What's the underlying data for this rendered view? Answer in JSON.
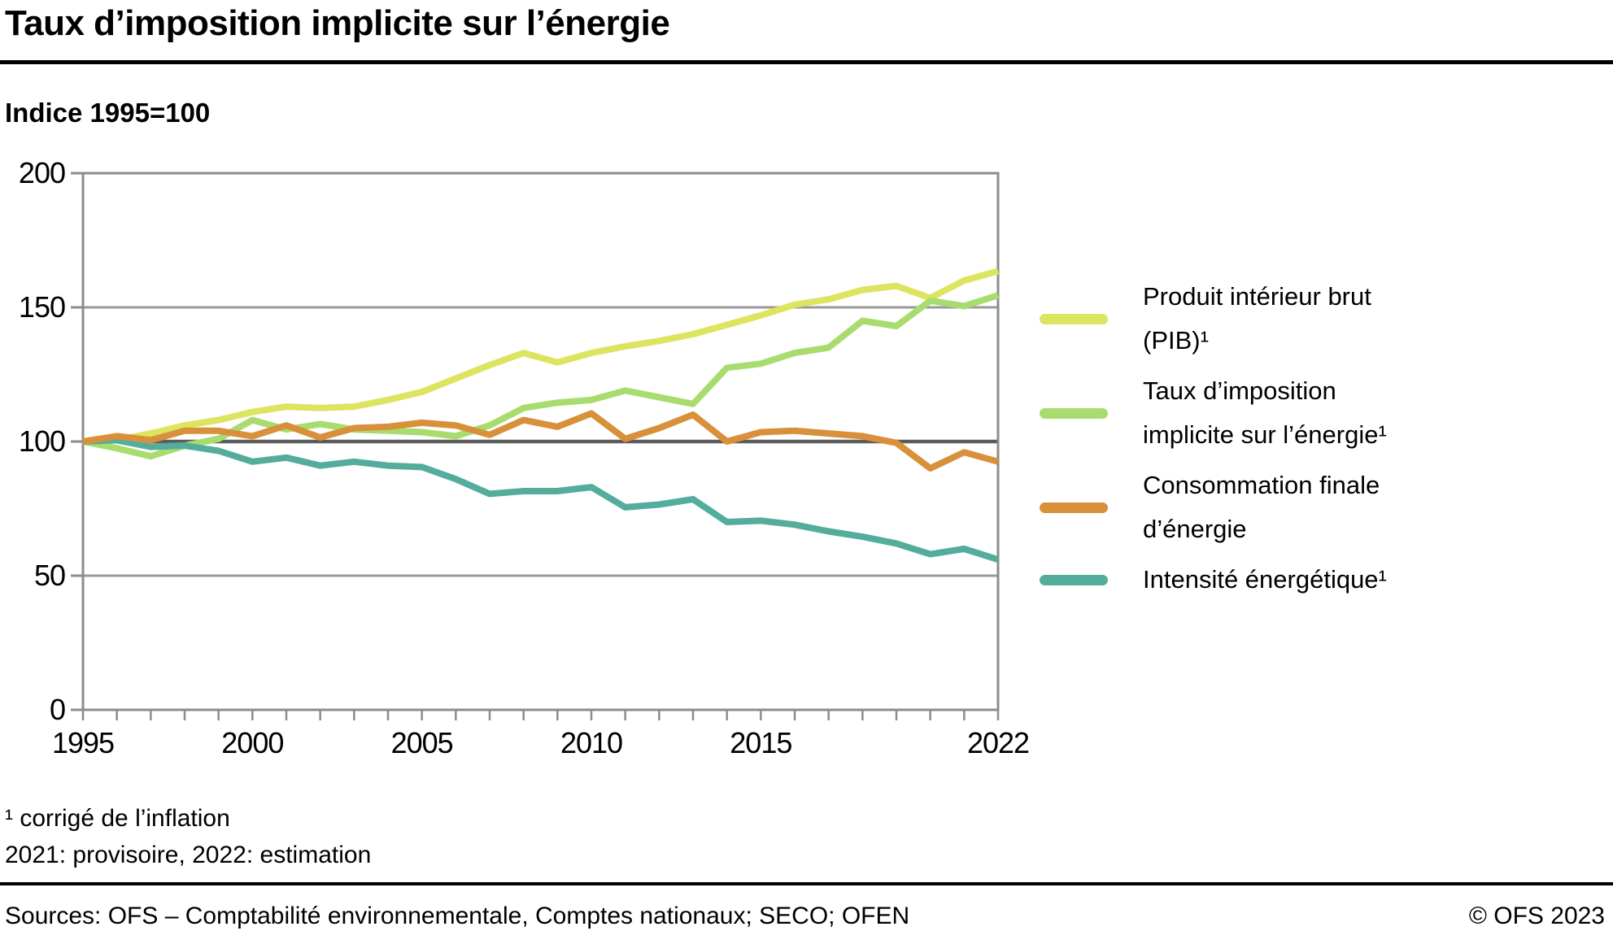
{
  "title": "Taux d’imposition implicite sur l’énergie",
  "subtitle": "Indice 1995=100",
  "chart_data": {
    "type": "line",
    "title": "Taux d’imposition implicite sur l’énergie",
    "index_note": "Indice 1995=100",
    "x": [
      1995,
      1996,
      1997,
      1998,
      1999,
      2000,
      2001,
      2002,
      2003,
      2004,
      2005,
      2006,
      2007,
      2008,
      2009,
      2010,
      2011,
      2012,
      2013,
      2014,
      2015,
      2016,
      2017,
      2018,
      2019,
      2020,
      2021,
      2022
    ],
    "series": [
      {
        "name": "Produit intérieur brut (PIB)¹",
        "color": "#dde45f",
        "values": [
          100,
          100.5,
          103,
          106,
          108,
          111,
          113,
          112.5,
          113,
          115.5,
          118.5,
          123.5,
          128.5,
          133,
          129.5,
          133,
          135.5,
          137.5,
          140,
          143.5,
          147,
          151,
          153,
          156.5,
          158,
          153.5,
          160,
          163.5
        ]
      },
      {
        "name": "Taux d’imposition implicite sur l’énergie¹",
        "color": "#a9dc6f",
        "values": [
          100,
          97.5,
          94.5,
          98.5,
          101,
          108,
          104.5,
          106.5,
          104.5,
          104,
          103.5,
          102,
          106,
          112.5,
          114.5,
          115.5,
          119,
          116.5,
          114,
          127.5,
          129,
          133,
          135,
          145,
          143,
          152.5,
          150.5,
          154.5
        ]
      },
      {
        "name": "Consommation finale d’énergie",
        "color": "#d8903a",
        "values": [
          100,
          102,
          100.5,
          104,
          104,
          102,
          106,
          101.5,
          105,
          105.5,
          107,
          106,
          102.5,
          108,
          105.5,
          110.5,
          101,
          105,
          110,
          100,
          103.5,
          104,
          103,
          102,
          99.5,
          90,
          96,
          92.5
        ]
      },
      {
        "name": "Intensité énergétique¹",
        "color": "#54ad9c",
        "values": [
          100,
          100.5,
          98,
          98.5,
          96.5,
          92.5,
          94,
          91,
          92.5,
          91,
          90.5,
          86,
          80.5,
          81.5,
          81.5,
          83,
          75.5,
          76.5,
          78.5,
          70,
          70.5,
          69,
          66.5,
          64.5,
          62,
          58,
          60,
          56
        ]
      }
    ],
    "draw_order": [
      0,
      1,
      3,
      2
    ],
    "ylim": [
      0,
      200
    ],
    "yticks": [
      0,
      50,
      100,
      150,
      200
    ],
    "xticks": [
      1995,
      2000,
      2005,
      2010,
      2015,
      2022
    ],
    "grid": {
      "light_lines": [
        150,
        50
      ],
      "dark_line": 100
    },
    "legend_position": "right"
  },
  "legend": {
    "items": [
      {
        "lines": [
          "Produit intérieur brut",
          "(PIB)¹"
        ],
        "color": "#dde45f"
      },
      {
        "lines": [
          "Taux d’imposition",
          "implicite sur l’énergie¹"
        ],
        "color": "#a9dc6f"
      },
      {
        "lines": [
          "Consommation finale",
          "d’énergie"
        ],
        "color": "#d8903a"
      },
      {
        "lines": [
          "Intensité énergétique¹"
        ],
        "color": "#54ad9c"
      }
    ]
  },
  "footnotes": {
    "line1": "¹   corrigé de l’inflation",
    "line2": "2021: provisoire, 2022: estimation"
  },
  "sources": {
    "left": "Sources: OFS – Comptabilité environnementale, Comptes nationaux; SECO; OFEN",
    "right": "© OFS 2023"
  }
}
